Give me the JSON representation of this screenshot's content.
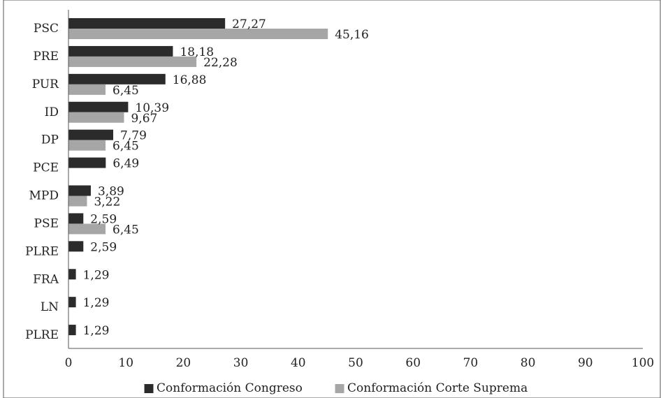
{
  "chart_data": {
    "type": "bar",
    "orientation": "horizontal",
    "categories": [
      "PSC",
      "PRE",
      "PUR",
      "ID",
      "DP",
      "PCE",
      "MPD",
      "PSE",
      "PLRE",
      "FRA",
      "LN",
      "PLRE"
    ],
    "series": [
      {
        "name": "Conformación Congreso",
        "color": "#2b2b2b",
        "values": [
          27.27,
          18.18,
          16.88,
          10.39,
          7.79,
          6.49,
          3.89,
          2.59,
          2.59,
          1.29,
          1.29,
          1.29
        ],
        "labels": [
          "27,27",
          "18,18",
          "16,88",
          "10,39",
          "7,79",
          "6,49",
          "3,89",
          "2,59",
          "2,59",
          "1,29",
          "1,29",
          "1,29"
        ]
      },
      {
        "name": "Conformación Corte Suprema",
        "color": "#a6a6a6",
        "values": [
          45.16,
          22.28,
          6.45,
          9.67,
          6.45,
          null,
          3.22,
          6.45,
          null,
          null,
          null,
          null
        ],
        "labels": [
          "45,16",
          "22,28",
          "6,45",
          "9,67",
          "6,45",
          "",
          "3,22",
          "6,45",
          "",
          "",
          "",
          ""
        ]
      }
    ],
    "xlim": [
      0,
      100
    ],
    "x_ticks": [
      "0",
      "10",
      "20",
      "30",
      "40",
      "50",
      "60",
      "70",
      "80",
      "90",
      "100"
    ],
    "grid": false,
    "legend_position": "bottom",
    "title": "",
    "xlabel": "",
    "ylabel": ""
  },
  "legend": {
    "marker": "■",
    "congreso_label": "Conformación Congreso",
    "corte_label": "Conformación Corte Suprema"
  }
}
